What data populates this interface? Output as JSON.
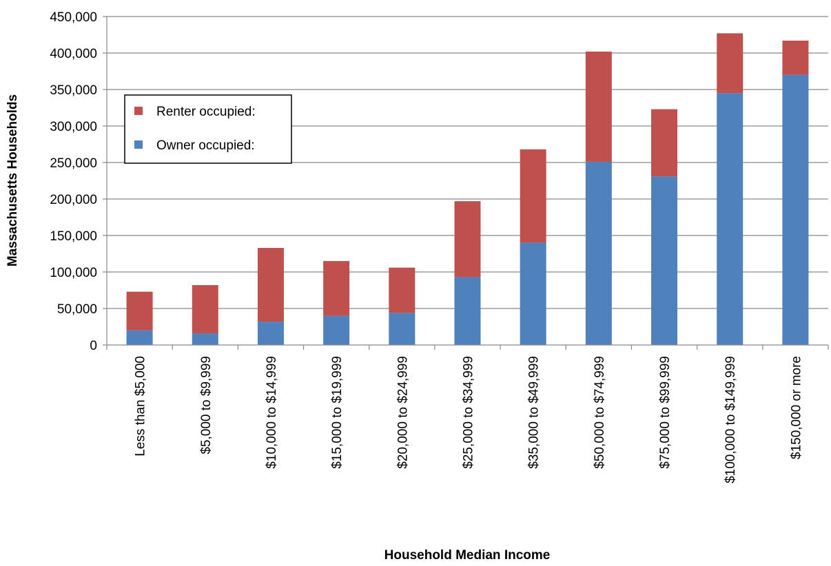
{
  "chart_data": {
    "type": "bar",
    "stacked": true,
    "xlabel": "Household Median Income",
    "ylabel": "Massachusetts Households",
    "ylim": [
      0,
      450000
    ],
    "yticks": [
      0,
      50000,
      100000,
      150000,
      200000,
      250000,
      300000,
      350000,
      400000,
      450000
    ],
    "ytick_labels": [
      "0",
      "50,000",
      "100,000",
      "150,000",
      "200,000",
      "250,000",
      "300,000",
      "350,000",
      "400,000",
      "450,000"
    ],
    "grid": "horizontal",
    "legend_position": "upper-left",
    "categories": [
      "Less than $5,000",
      "$5,000 to $9,999",
      "$10,000 to $14,999",
      "$15,000 to $19,999",
      "$20,000 to $24,999",
      "$25,000 to $34,999",
      "$35,000 to $49,999",
      "$50,000 to $74,999",
      "$75,000 to $99,999",
      "$100,000 to $149,999",
      "$150,000 or more"
    ],
    "series": [
      {
        "name": "Owner occupied:",
        "color": "#4F81BD",
        "values": [
          20000,
          16000,
          32000,
          40000,
          44000,
          93000,
          140000,
          251000,
          231000,
          345000,
          370000
        ]
      },
      {
        "name": "Renter occupied:",
        "color": "#C0504D",
        "values": [
          53000,
          66000,
          101000,
          75000,
          62000,
          104000,
          128000,
          151000,
          92000,
          82000,
          47000
        ]
      }
    ],
    "legend_order": [
      "Renter occupied:",
      "Owner occupied:"
    ]
  }
}
